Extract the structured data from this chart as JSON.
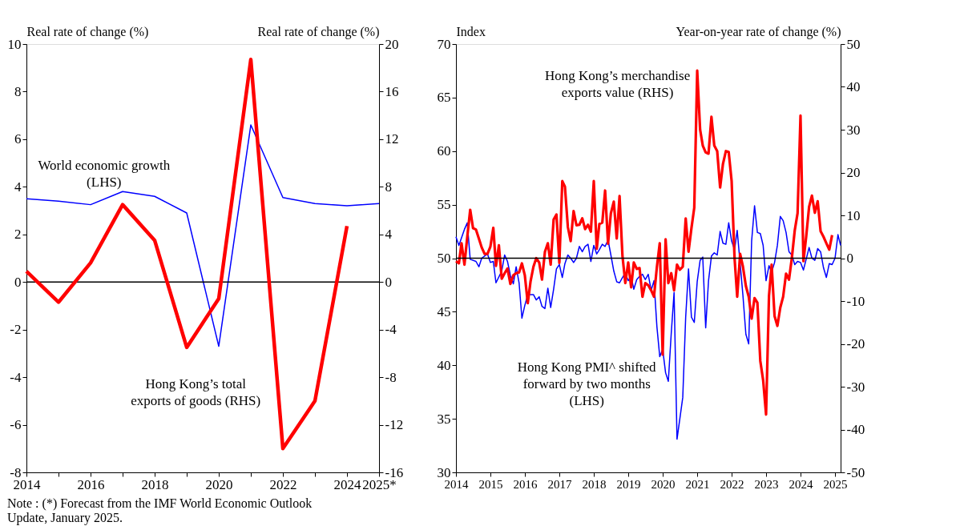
{
  "chart_data": [
    {
      "type": "line",
      "x": [
        2014,
        2015,
        2016,
        2017,
        2018,
        2019,
        2020,
        2021,
        2022,
        2023,
        2024,
        2025
      ],
      "xlim": [
        2014,
        2025
      ],
      "xticks": [
        2014,
        {
          "value": 2015,
          "label": null
        },
        2016,
        {
          "value": 2017,
          "label": null
        },
        2018,
        {
          "value": 2019,
          "label": null
        },
        2020,
        {
          "value": 2021,
          "label": null
        },
        2022,
        {
          "value": 2023,
          "label": null
        },
        2024,
        {
          "value": 2025,
          "label": "2025*"
        }
      ],
      "ylim": [
        -8,
        10
      ],
      "yticks": [
        -8,
        -6,
        -4,
        -2,
        0,
        2,
        4,
        6,
        8,
        10
      ],
      "y2lim": [
        -16,
        20
      ],
      "y2ticks": [
        -16,
        -12,
        -8,
        -4,
        0,
        4,
        8,
        12,
        16,
        20
      ],
      "ylabel": "Real rate of change (%)",
      "y2label": "Real rate of change (%)",
      "grid": false,
      "marker": "none",
      "line_style": "solid",
      "series": [
        {
          "name": "World economic growth (LHS)",
          "color": "#0000ff",
          "values": [
            3.5,
            3.4,
            3.25,
            3.8,
            3.6,
            2.9,
            -2.7,
            6.6,
            3.55,
            3.3,
            3.2,
            3.3
          ]
        },
        {
          "name": "Hong Kong’s total exports of goods (RHS)",
          "color": "#ff0000",
          "axis": "y2",
          "values": [
            0.9,
            -1.7,
            1.6,
            6.5,
            3.5,
            -5.5,
            -1.4,
            18.7,
            -14.0,
            -10.0,
            4.7,
            null
          ]
        }
      ],
      "ref_lines": [
        {
          "axis": "y",
          "value": 0,
          "color": "#000000"
        }
      ],
      "annotations": [
        "Note :  (*) Forecast from the IMF World Economic Outlook Update, January 2025."
      ]
    },
    {
      "type": "line",
      "xlim": [
        "2014-01",
        "2025-03"
      ],
      "xticks": [
        "2014",
        "2015",
        "2016",
        "2017",
        "2018",
        "2019",
        "2020",
        "2021",
        "2022",
        "2023",
        "2024",
        "2025"
      ],
      "ylim": [
        30,
        70
      ],
      "yticks": [
        30,
        35,
        40,
        45,
        50,
        55,
        60,
        65,
        70
      ],
      "y2lim": [
        -50,
        50
      ],
      "y2ticks": [
        -50,
        -40,
        -30,
        -20,
        -10,
        0,
        10,
        20,
        30,
        40,
        50
      ],
      "ylabel": "Index",
      "y2label": "Year-on-year rate of change (%)",
      "grid": false,
      "marker": "none",
      "line_style": "solid",
      "series": [
        {
          "name": "Hong Kong PMI^ shifted forward by two months (LHS)",
          "color": "#0000ff",
          "x": [
            "2014-01",
            "2014-02",
            "2014-04",
            "2014-05",
            "2014-06",
            "2014-08",
            "2014-09",
            "2014-10",
            "2014-12",
            "2015-01",
            "2015-02",
            "2015-03",
            "2015-05",
            "2015-06",
            "2015-07",
            "2015-08",
            "2015-09",
            "2015-10",
            "2015-11",
            "2015-12",
            "2016-01",
            "2016-02",
            "2016-04",
            "2016-05",
            "2016-06",
            "2016-07",
            "2016-08",
            "2016-09",
            "2016-10",
            "2016-11",
            "2016-12",
            "2017-01",
            "2017-02",
            "2017-03",
            "2017-04",
            "2017-05",
            "2017-06",
            "2017-07",
            "2017-08",
            "2017-09",
            "2017-10",
            "2017-11",
            "2017-12",
            "2018-01",
            "2018-02",
            "2018-03",
            "2018-04",
            "2018-05",
            "2018-06",
            "2018-07",
            "2018-08",
            "2018-09",
            "2018-10",
            "2018-11",
            "2018-12",
            "2019-01",
            "2019-02",
            "2019-03",
            "2019-04",
            "2019-05",
            "2019-06",
            "2019-07",
            "2019-08",
            "2019-09",
            "2019-10",
            "2019-11",
            "2019-12",
            "2020-01",
            "2020-02",
            "2020-03",
            "2020-04",
            "2020-05",
            "2020-06",
            "2020-07",
            "2020-08",
            "2020-09",
            "2020-10",
            "2020-11",
            "2020-12",
            "2021-01",
            "2021-02",
            "2021-03",
            "2021-04",
            "2021-05",
            "2021-06",
            "2021-07",
            "2021-08",
            "2021-09",
            "2021-10",
            "2021-11",
            "2021-12",
            "2022-01",
            "2022-02",
            "2022-03",
            "2022-04",
            "2022-05",
            "2022-06",
            "2022-07",
            "2022-08",
            "2022-09",
            "2022-10",
            "2022-11",
            "2022-12",
            "2023-01",
            "2023-02",
            "2023-03",
            "2023-04",
            "2023-05",
            "2023-06",
            "2023-07",
            "2023-08",
            "2023-09",
            "2023-10",
            "2023-11",
            "2023-12",
            "2024-01",
            "2024-02",
            "2024-03",
            "2024-04",
            "2024-05",
            "2024-06",
            "2024-07",
            "2024-08",
            "2024-09",
            "2024-10",
            "2024-11",
            "2024-12",
            "2025-01",
            "2025-02",
            "2025-03"
          ],
          "values": [
            52.0,
            51.2,
            52.7,
            53.3,
            49.9,
            49.7,
            49.2,
            50.0,
            50.4,
            49.6,
            49.7,
            47.7,
            48.8,
            50.3,
            49.7,
            48.4,
            47.6,
            49.2,
            47.7,
            44.4,
            45.6,
            46.6,
            46.6,
            46.1,
            46.4,
            45.5,
            45.3,
            47.2,
            45.4,
            47.1,
            49.0,
            49.4,
            48.2,
            49.5,
            50.3,
            50.0,
            49.6,
            50.0,
            51.1,
            50.6,
            51.1,
            51.3,
            49.7,
            51.2,
            50.4,
            50.8,
            51.3,
            51.1,
            51.7,
            50.3,
            48.8,
            47.8,
            47.7,
            48.2,
            48.6,
            47.9,
            48.3,
            47.1,
            48.0,
            48.3,
            48.5,
            48.0,
            48.5,
            47.0,
            47.9,
            43.6,
            40.8,
            41.5,
            39.3,
            38.5,
            43.0,
            46.8,
            33.1,
            35.0,
            37.0,
            44.5,
            49.0,
            44.5,
            44.0,
            47.8,
            49.8,
            50.1,
            43.5,
            47.9,
            50.2,
            50.5,
            50.3,
            52.5,
            51.4,
            51.3,
            53.3,
            51.6,
            50.8,
            52.6,
            49.5,
            46.5,
            42.9,
            42.0,
            51.6,
            54.9,
            52.4,
            52.3,
            51.2,
            47.9,
            49.3,
            48.7,
            49.6,
            51.2,
            53.9,
            53.5,
            52.4,
            50.6,
            50.3,
            49.4,
            49.7,
            49.6,
            48.9,
            49.9,
            51.0,
            50.0,
            49.8,
            50.9,
            50.6,
            49.1,
            48.2,
            49.5,
            49.4,
            50.0,
            52.2,
            51.2
          ]
        },
        {
          "name": "Hong Kong’s merchandise exports value (RHS)",
          "color": "#ff0000",
          "axis": "y2",
          "x": [
            "2014-01",
            "2014-02",
            "2014-03",
            "2014-04",
            "2014-05",
            "2014-06",
            "2014-07",
            "2014-08",
            "2014-09",
            "2014-10",
            "2014-11",
            "2014-12",
            "2015-01",
            "2015-02",
            "2015-03",
            "2015-04",
            "2015-05",
            "2015-06",
            "2015-07",
            "2015-08",
            "2015-09",
            "2015-10",
            "2015-11",
            "2015-12",
            "2016-01",
            "2016-02",
            "2016-03",
            "2016-04",
            "2016-05",
            "2016-06",
            "2016-07",
            "2016-08",
            "2016-09",
            "2016-10",
            "2016-11",
            "2016-12",
            "2017-01",
            "2017-02",
            "2017-03",
            "2017-04",
            "2017-05",
            "2017-06",
            "2017-07",
            "2017-08",
            "2017-09",
            "2017-10",
            "2017-11",
            "2017-12",
            "2018-01",
            "2018-02",
            "2018-03",
            "2018-04",
            "2018-05",
            "2018-06",
            "2018-07",
            "2018-08",
            "2018-09",
            "2018-10",
            "2018-11",
            "2018-12",
            "2019-01",
            "2019-02",
            "2019-03",
            "2019-04",
            "2019-05",
            "2019-06",
            "2019-07",
            "2019-08",
            "2019-09",
            "2019-10",
            "2019-11",
            "2019-12",
            "2020-01",
            "2020-02",
            "2020-03",
            "2020-04",
            "2020-05",
            "2020-06",
            "2020-07",
            "2020-08",
            "2020-09",
            "2020-10",
            "2020-11",
            "2020-12",
            "2021-01",
            "2021-02",
            "2021-03",
            "2021-04",
            "2021-05",
            "2021-06",
            "2021-07",
            "2021-08",
            "2021-09",
            "2021-10",
            "2021-11",
            "2021-12",
            "2022-01",
            "2022-02",
            "2022-03",
            "2022-04",
            "2022-05",
            "2022-06",
            "2022-07",
            "2022-08",
            "2022-09",
            "2022-10",
            "2022-11",
            "2022-12",
            "2023-01",
            "2023-02",
            "2023-03",
            "2023-04",
            "2023-05",
            "2023-06",
            "2023-07",
            "2023-08",
            "2023-09",
            "2023-10",
            "2023-11",
            "2023-12",
            "2024-01",
            "2024-02",
            "2024-03",
            "2024-04",
            "2024-05",
            "2024-06",
            "2024-07",
            "2024-08",
            "2024-09",
            "2024-10",
            "2024-11",
            "2024-12"
          ],
          "values": [
            -0.7,
            -1.2,
            3.5,
            -1.5,
            5.0,
            11.3,
            7.0,
            6.7,
            4.6,
            2.5,
            1.0,
            1.0,
            2.7,
            7.1,
            -1.8,
            3.0,
            -4.8,
            -3.5,
            -2.4,
            -6.0,
            -4.0,
            -3.5,
            -3.3,
            -1.2,
            -4.0,
            -10.5,
            -5.5,
            -2.0,
            0.0,
            -1.0,
            -5.0,
            1.5,
            3.5,
            -1.5,
            9.0,
            10.2,
            -1.1,
            18.0,
            16.7,
            7.3,
            4.0,
            11.0,
            7.7,
            7.8,
            9.3,
            6.8,
            7.8,
            6.2,
            18.0,
            2.2,
            8.0,
            8.3,
            15.8,
            3.4,
            10.5,
            13.2,
            4.6,
            14.5,
            0.5,
            -5.8,
            -1.0,
            -6.8,
            -1.0,
            -2.5,
            -2.3,
            -9.0,
            -5.8,
            -6.3,
            -7.5,
            -9.0,
            -2.0,
            3.5,
            -22.5,
            4.4,
            -5.8,
            -3.5,
            -7.5,
            -1.5,
            -2.7,
            -2.0,
            9.3,
            1.5,
            7.0,
            11.8,
            43.8,
            30.0,
            26.3,
            24.7,
            24.4,
            33.0,
            26.3,
            25.0,
            16.5,
            22.0,
            25.0,
            24.8,
            18.0,
            0.0,
            -9.0,
            1.0,
            -2.0,
            -6.5,
            -9.0,
            -14.1,
            -9.3,
            -10.4,
            -24.0,
            -28.5,
            -36.5,
            -8.8,
            -1.5,
            -13.5,
            -15.8,
            -11.5,
            -9.0,
            -3.6,
            -5.0,
            0.0,
            6.5,
            10.5,
            33.3,
            -0.7,
            5.0,
            12.0,
            14.6,
            10.6,
            13.3,
            6.3,
            5.0,
            3.5,
            2.0,
            5.4
          ]
        }
      ],
      "ref_lines": [
        {
          "axis": "y2",
          "value": 0,
          "color": "#000000"
        }
      ]
    }
  ]
}
